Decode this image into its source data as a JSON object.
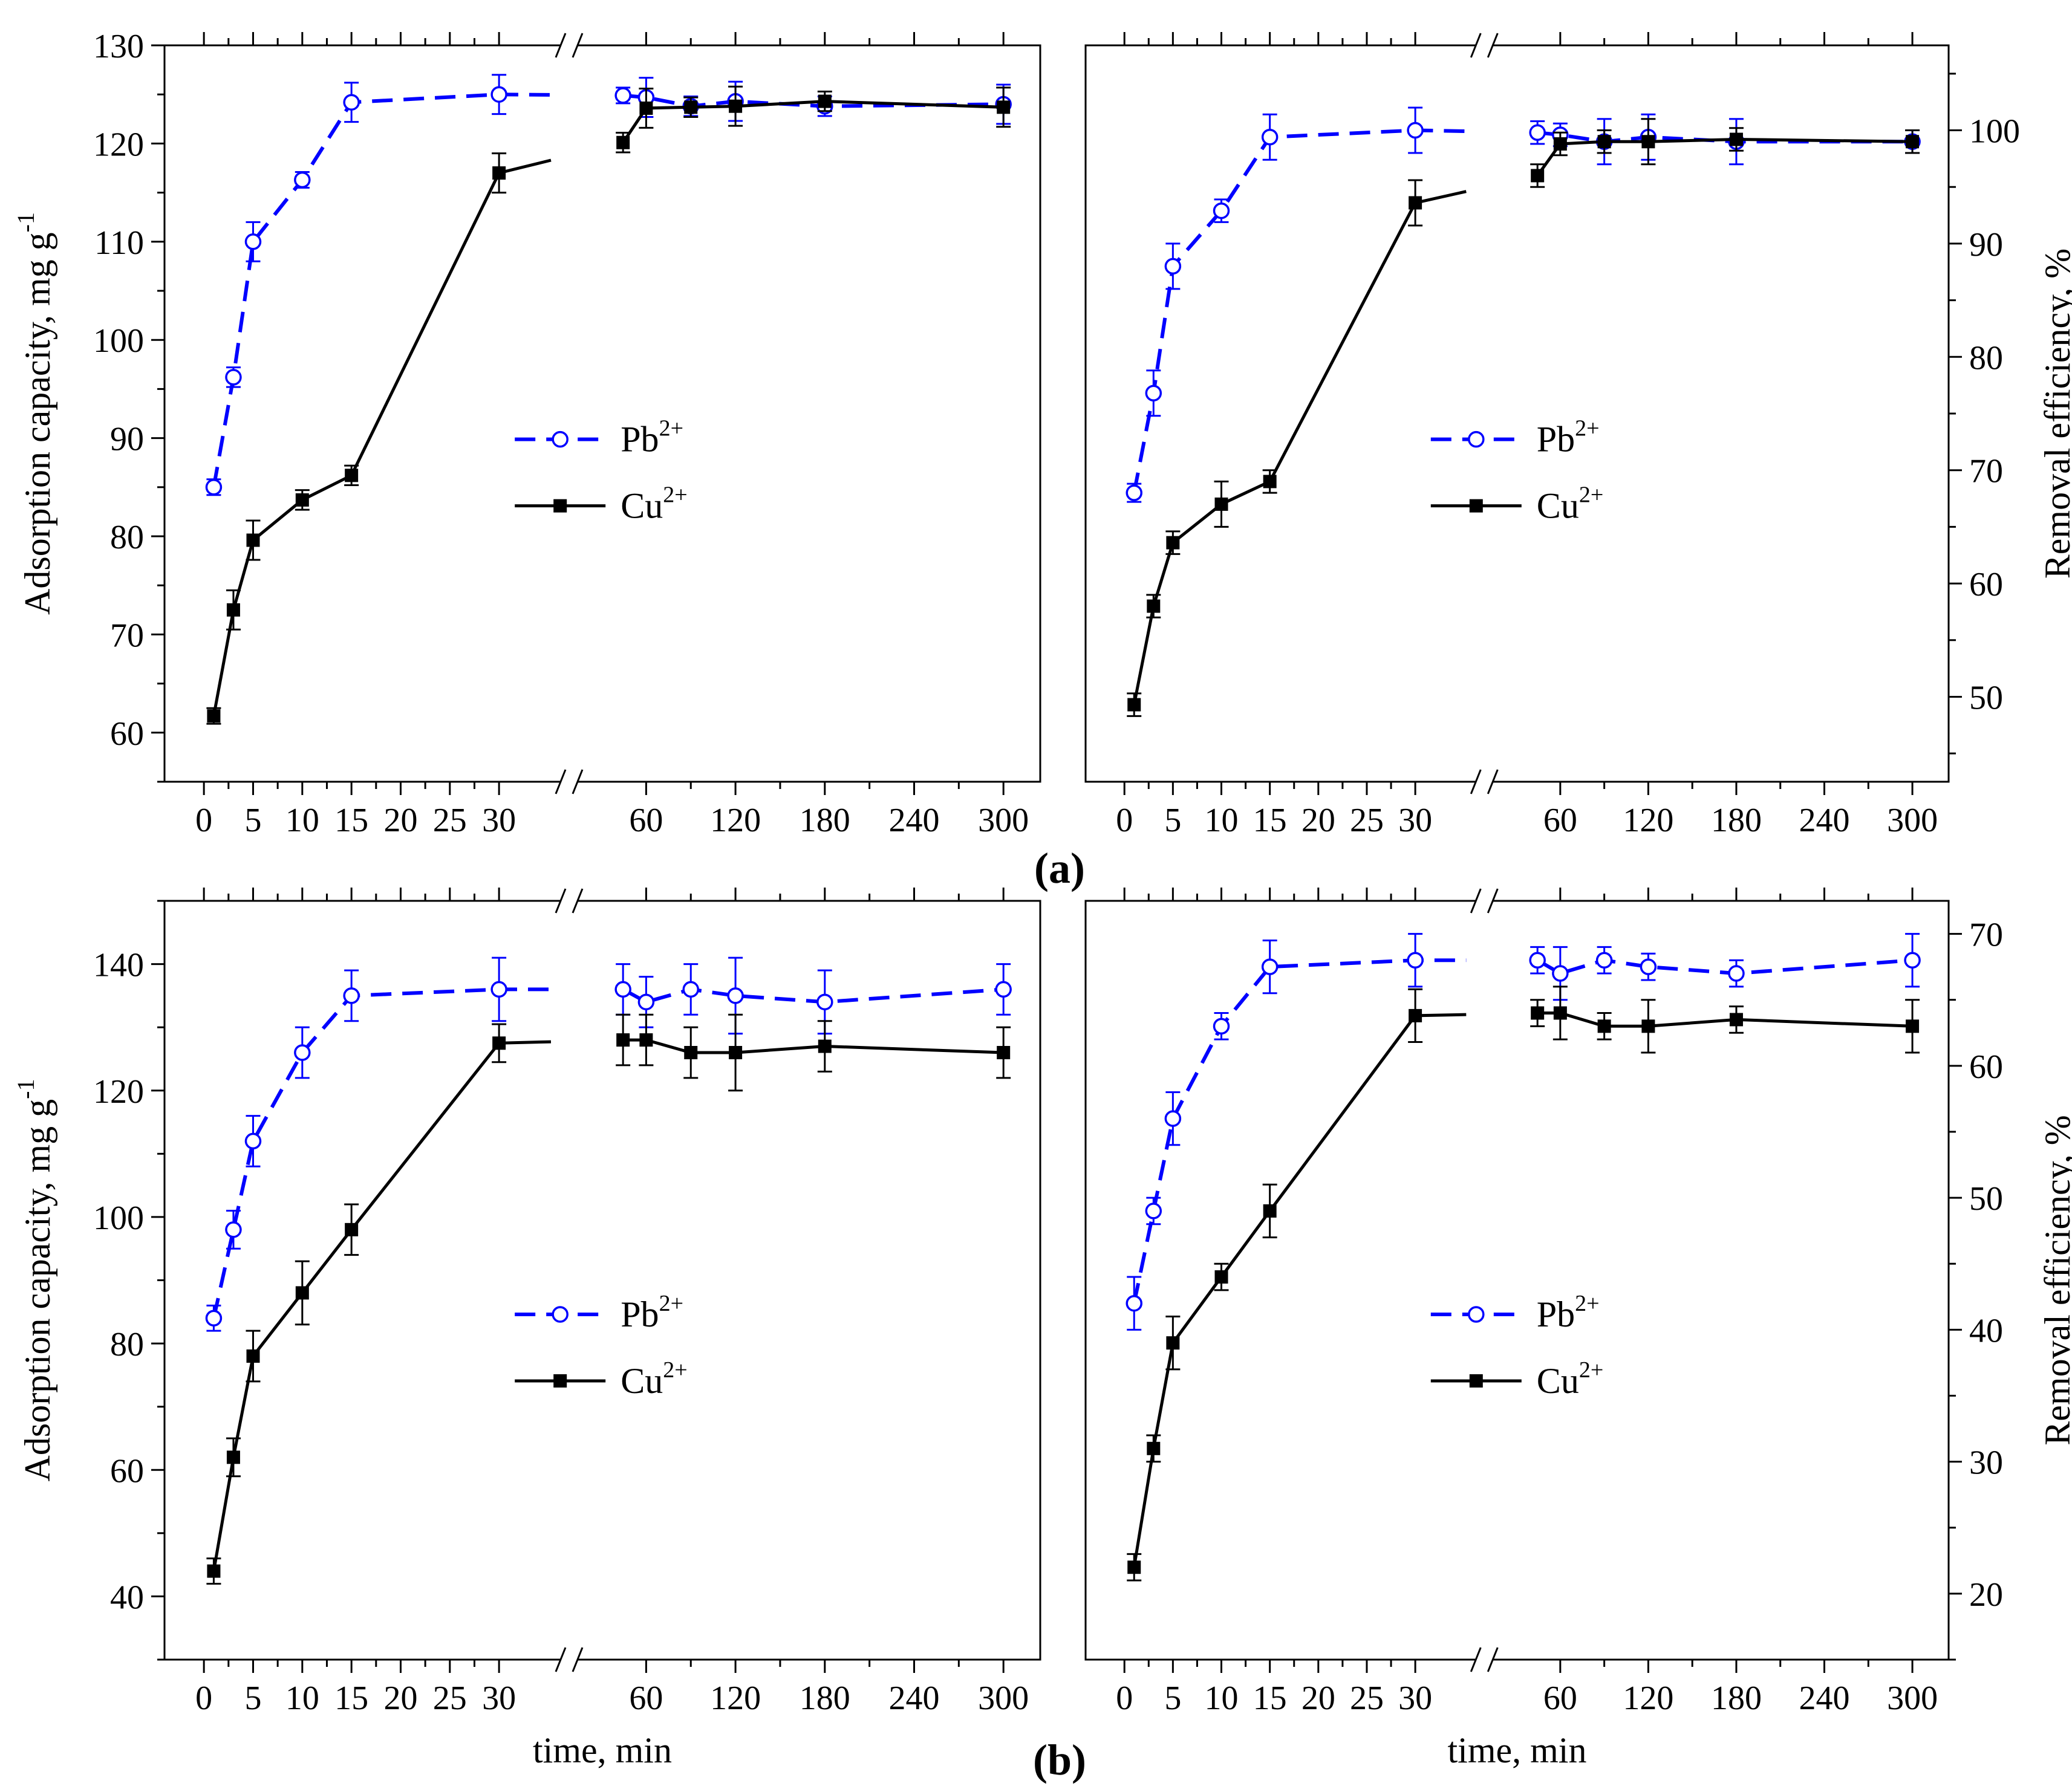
{
  "figure": {
    "panel_labels": {
      "a": "(a)",
      "b": "(b)"
    }
  },
  "chart_data": [
    {
      "id": "a-left",
      "type": "line",
      "panel": "(a)",
      "xlabel": "",
      "ylabel": "Adsorption capacity, mg g",
      "ylabel_sup": "-1",
      "ylim": [
        55,
        130
      ],
      "yticks": [
        60,
        70,
        80,
        90,
        100,
        110,
        120,
        130
      ],
      "x_ticks_before_break": [
        0,
        5,
        10,
        15,
        20,
        25,
        30
      ],
      "x_ticks_after_break": [
        60,
        120,
        180,
        240,
        300
      ],
      "x_break": "30 // 60",
      "legend_position": "center-right",
      "series": [
        {
          "name": "Pb",
          "sup": "2+",
          "color": "#0000ff",
          "style": "dashed",
          "marker": "open-circle",
          "x": [
            1,
            3,
            5,
            10,
            15,
            30,
            50,
            60,
            90,
            120,
            180,
            300
          ],
          "y": [
            85,
            96.2,
            110,
            116.3,
            124.2,
            125,
            124.9,
            124.7,
            123.8,
            124.3,
            123.8,
            124
          ],
          "err": [
            0.8,
            1,
            2,
            0.8,
            2,
            2,
            0.8,
            2,
            1,
            2,
            1,
            2
          ]
        },
        {
          "name": "Cu",
          "sup": "2+",
          "color": "#000000",
          "style": "solid",
          "marker": "filled-square",
          "x": [
            1,
            3,
            5,
            10,
            15,
            30,
            50,
            60,
            90,
            120,
            180,
            300
          ],
          "y": [
            61.7,
            72.5,
            79.6,
            83.7,
            86.2,
            117,
            120.1,
            123.6,
            123.7,
            123.8,
            124.3,
            123.7
          ],
          "err": [
            0.8,
            2,
            2,
            1,
            1,
            2,
            1,
            2,
            1,
            2,
            1,
            2
          ]
        }
      ]
    },
    {
      "id": "a-right",
      "type": "line",
      "panel": "(a)",
      "xlabel": "",
      "ylabel": "Removal efficiency, %",
      "ylabel_sup": "",
      "ylim": [
        42.5,
        107.5
      ],
      "yticks": [
        50,
        60,
        70,
        80,
        90,
        100
      ],
      "x_ticks_before_break": [
        0,
        5,
        10,
        15,
        20,
        25,
        30
      ],
      "x_ticks_after_break": [
        60,
        120,
        180,
        240,
        300
      ],
      "x_break": "30 // 60",
      "legend_position": "center-right",
      "series": [
        {
          "name": "Pb",
          "sup": "2+",
          "color": "#0000ff",
          "style": "dashed",
          "marker": "open-circle",
          "x": [
            1,
            3,
            5,
            10,
            15,
            30,
            50,
            60,
            90,
            120,
            180,
            300
          ],
          "y": [
            68,
            76.8,
            88,
            92.9,
            99.4,
            100,
            99.8,
            99.6,
            99,
            99.4,
            99,
            99
          ],
          "err": [
            0.8,
            2,
            2,
            1,
            2,
            2,
            1,
            1,
            2,
            2,
            2,
            1
          ]
        },
        {
          "name": "Cu",
          "sup": "2+",
          "color": "#000000",
          "style": "solid",
          "marker": "filled-square",
          "x": [
            1,
            3,
            5,
            10,
            15,
            30,
            50,
            60,
            90,
            120,
            180,
            300
          ],
          "y": [
            49.3,
            58,
            63.6,
            67,
            69,
            93.6,
            96,
            98.8,
            99,
            99,
            99.2,
            99
          ],
          "err": [
            1,
            1,
            1,
            2,
            1,
            2,
            1,
            1,
            1,
            2,
            1,
            1
          ]
        }
      ]
    },
    {
      "id": "b-left",
      "type": "line",
      "panel": "(b)",
      "xlabel": "time, min",
      "ylabel": "Adsorption capacity, mg g",
      "ylabel_sup": "-1",
      "ylim": [
        30,
        150
      ],
      "yticks": [
        40,
        60,
        80,
        100,
        120,
        140
      ],
      "x_ticks_before_break": [
        0,
        5,
        10,
        15,
        20,
        25,
        30
      ],
      "x_ticks_after_break": [
        60,
        120,
        180,
        240,
        300
      ],
      "x_break": "30 // 60",
      "legend_position": "center-right",
      "series": [
        {
          "name": "Pb",
          "sup": "2+",
          "color": "#0000ff",
          "style": "dashed",
          "marker": "open-circle",
          "x": [
            1,
            3,
            5,
            10,
            15,
            30,
            50,
            60,
            90,
            120,
            180,
            300
          ],
          "y": [
            84,
            98,
            112,
            126,
            135,
            136,
            136,
            134,
            136,
            135,
            134,
            136
          ],
          "err": [
            2,
            3,
            4,
            4,
            4,
            5,
            4,
            4,
            4,
            6,
            5,
            4
          ]
        },
        {
          "name": "Cu",
          "sup": "2+",
          "color": "#000000",
          "style": "solid",
          "marker": "filled-square",
          "x": [
            1,
            3,
            5,
            10,
            15,
            30,
            50,
            60,
            90,
            120,
            180,
            300
          ],
          "y": [
            44,
            62,
            78,
            88,
            98,
            127.5,
            128,
            128,
            126,
            126,
            127,
            126
          ],
          "err": [
            2,
            3,
            4,
            5,
            4,
            3,
            4,
            4,
            4,
            6,
            4,
            4
          ]
        }
      ]
    },
    {
      "id": "b-right",
      "type": "line",
      "panel": "(b)",
      "xlabel": "time, min",
      "ylabel": "Removal efficiency, %",
      "ylabel_sup": "",
      "ylim": [
        15,
        72.5
      ],
      "yticks": [
        20,
        30,
        40,
        50,
        60,
        70
      ],
      "x_ticks_before_break": [
        0,
        5,
        10,
        15,
        20,
        25,
        30
      ],
      "x_ticks_after_break": [
        60,
        120,
        180,
        240,
        300
      ],
      "x_break": "30 // 60",
      "legend_position": "center-right",
      "series": [
        {
          "name": "Pb",
          "sup": "2+",
          "color": "#0000ff",
          "style": "dashed",
          "marker": "open-circle",
          "x": [
            1,
            3,
            5,
            10,
            15,
            30,
            50,
            60,
            90,
            120,
            180,
            300
          ],
          "y": [
            42,
            49,
            56,
            63,
            67.5,
            68,
            68,
            67,
            68,
            67.5,
            67,
            68
          ],
          "err": [
            2,
            1,
            2,
            1,
            2,
            2,
            1,
            2,
            1,
            1,
            1,
            2
          ]
        },
        {
          "name": "Cu",
          "sup": "2+",
          "color": "#000000",
          "style": "solid",
          "marker": "filled-square",
          "x": [
            1,
            3,
            5,
            10,
            15,
            30,
            50,
            60,
            90,
            120,
            180,
            300
          ],
          "y": [
            22,
            31,
            39,
            44,
            49,
            63.8,
            64,
            64,
            63,
            63,
            63.5,
            63
          ],
          "err": [
            1,
            1,
            2,
            1,
            2,
            2,
            1,
            2,
            1,
            2,
            1,
            2
          ]
        }
      ]
    }
  ]
}
